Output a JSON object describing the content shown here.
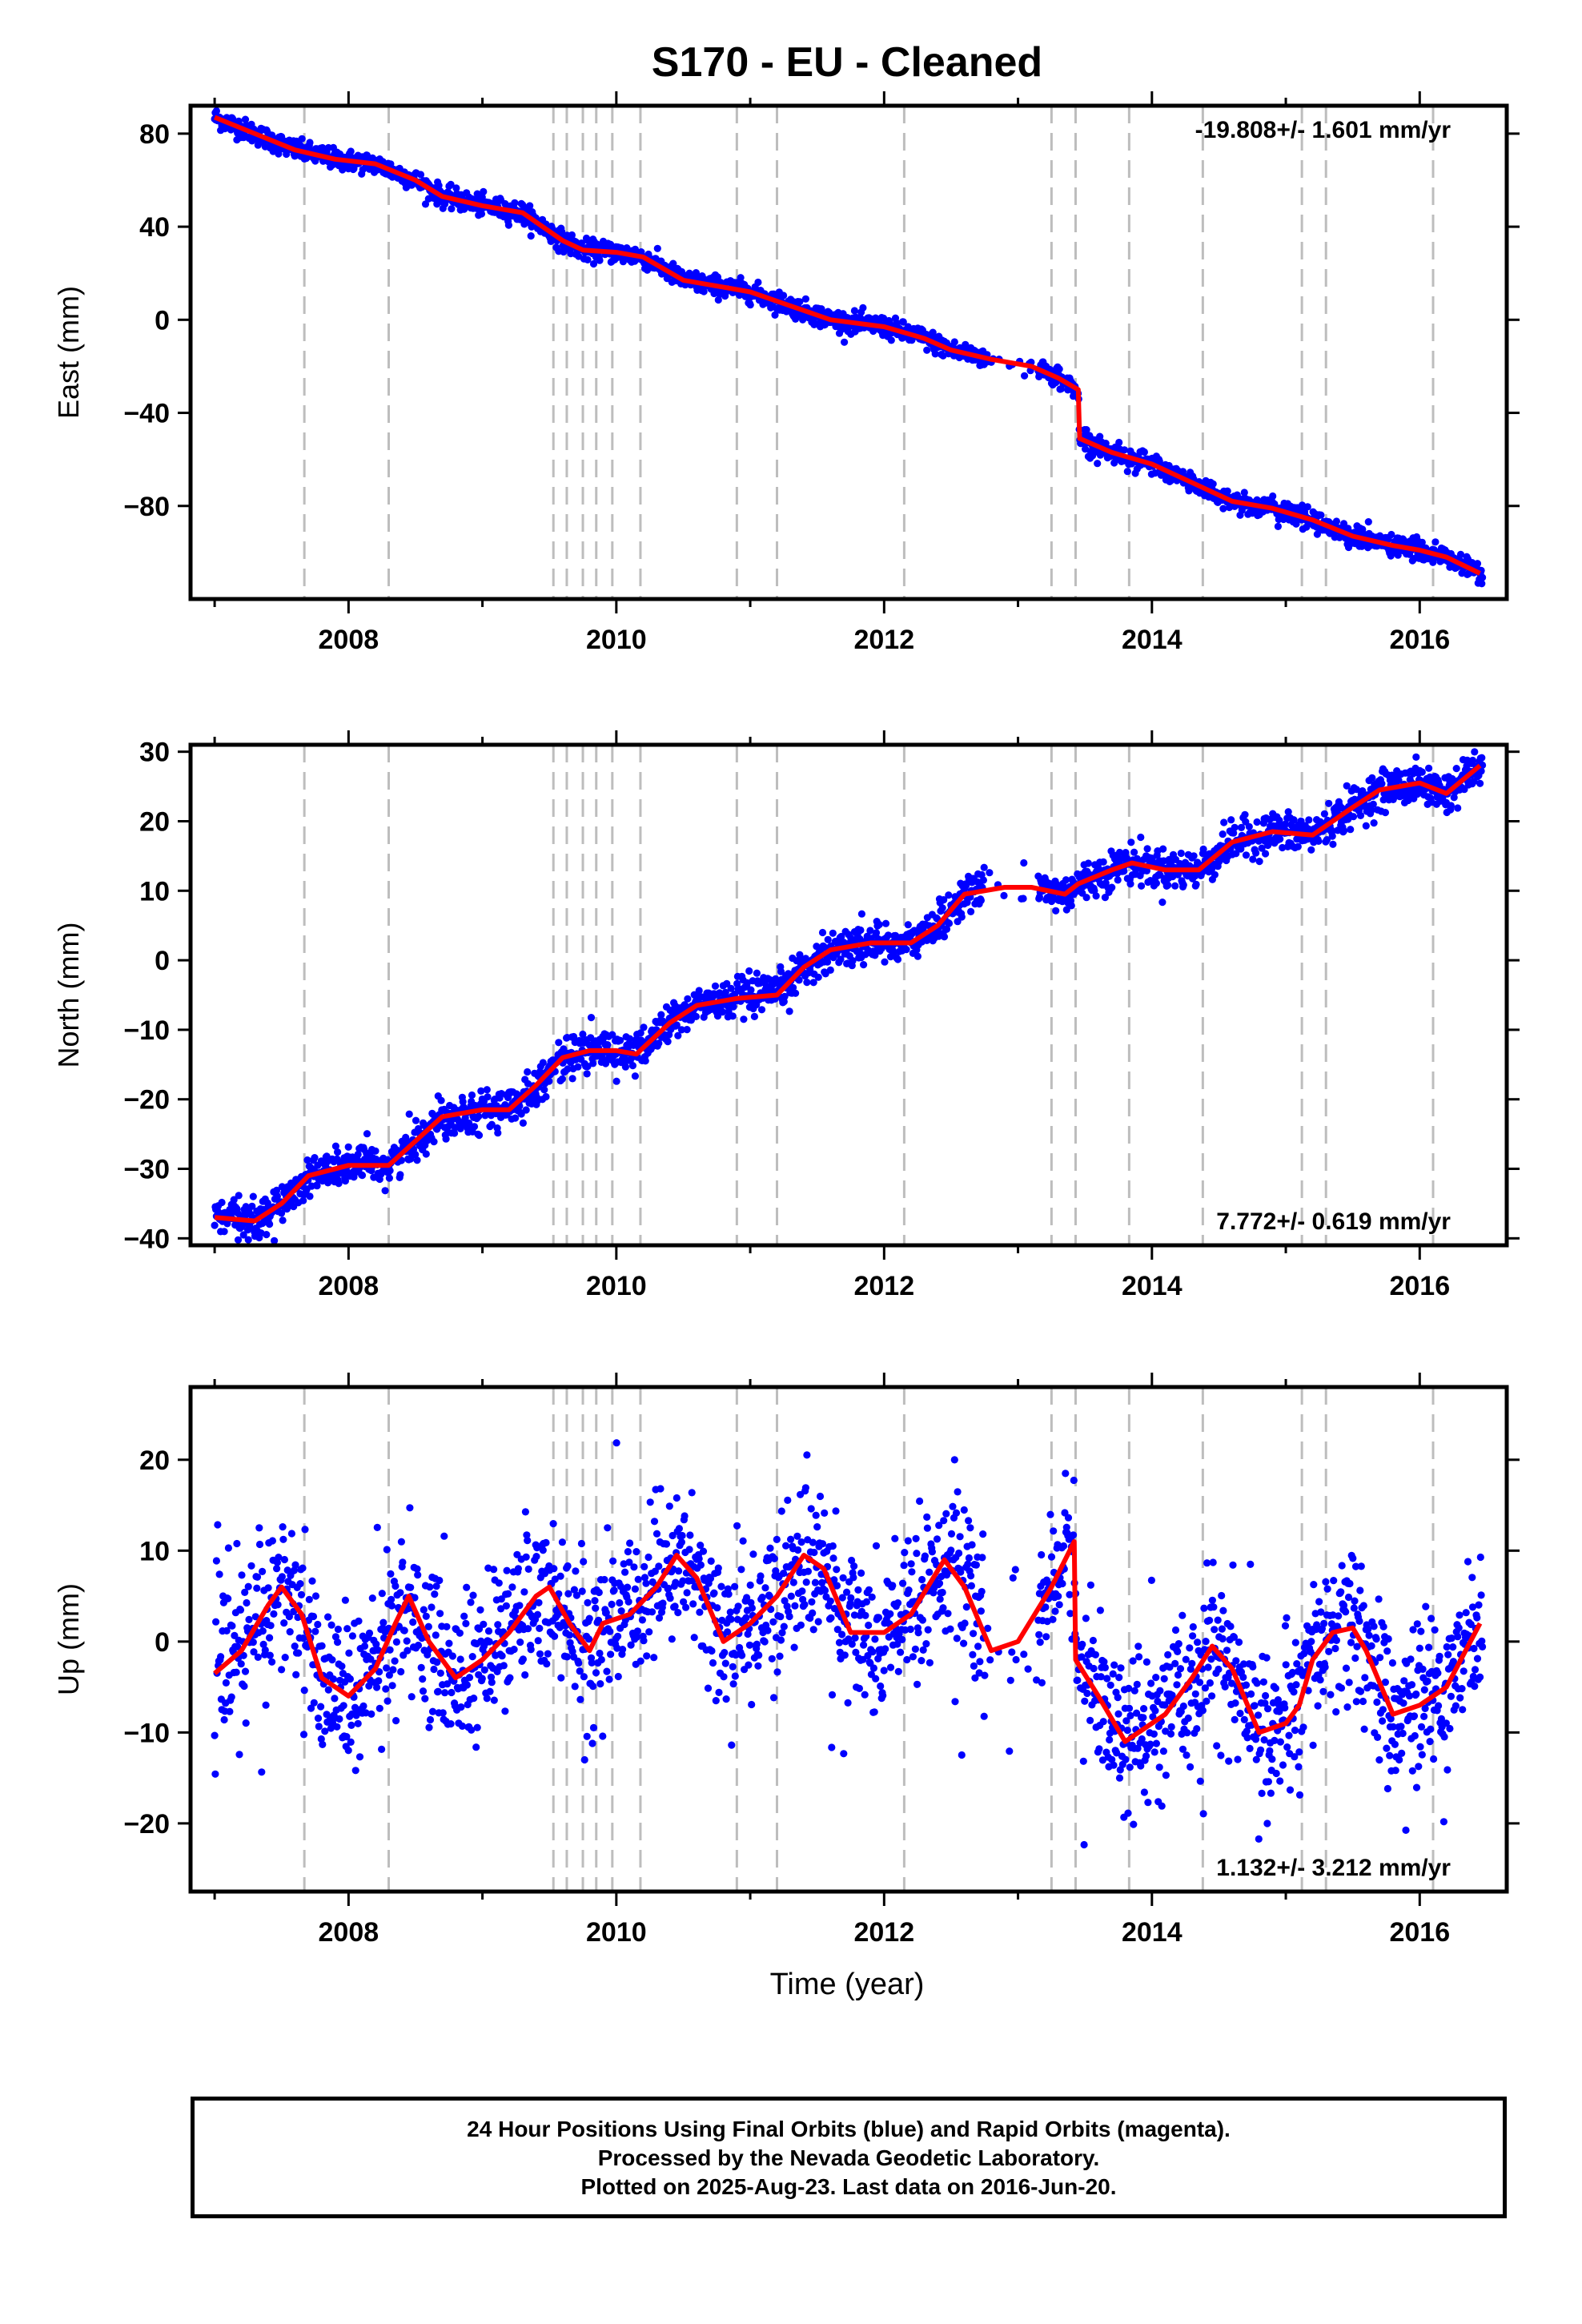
{
  "title": "S170  - EU - Cleaned",
  "x_axis_label": "Time (year)",
  "footer": {
    "line1": "24 Hour Positions Using Final Orbits (blue) and Rapid Orbits (magenta).",
    "line2": "Processed by the Nevada Geodetic Laboratory.",
    "line3": "Plotted on 2025-Aug-23. Last data on 2016-Jun-20."
  },
  "colors": {
    "points": "#0000ff",
    "model": "#ff0000",
    "steps": "#bdbdbd",
    "frame": "#000000"
  },
  "chart_data": [
    {
      "type": "scatter",
      "ylabel": "East (mm)",
      "rate_label": "-19.808+/- 1.601 mm/yr",
      "rate_position": "top-right",
      "xlim": [
        2006.82,
        2016.65
      ],
      "ylim": [
        -120,
        92
      ],
      "yticks": [
        80,
        40,
        0,
        -40,
        -80
      ],
      "xticks": [
        2008,
        2010,
        2012,
        2014,
        2016
      ],
      "model": [
        [
          2007.0,
          87
        ],
        [
          2007.3,
          80
        ],
        [
          2007.6,
          73
        ],
        [
          2007.9,
          69
        ],
        [
          2008.2,
          67
        ],
        [
          2008.5,
          60
        ],
        [
          2008.7,
          53
        ],
        [
          2009.0,
          49
        ],
        [
          2009.3,
          46
        ],
        [
          2009.6,
          34
        ],
        [
          2009.75,
          30
        ],
        [
          2010.0,
          29
        ],
        [
          2010.2,
          27
        ],
        [
          2010.5,
          17
        ],
        [
          2010.8,
          14
        ],
        [
          2011.0,
          12
        ],
        [
          2011.3,
          6
        ],
        [
          2011.6,
          0
        ],
        [
          2012.0,
          -3
        ],
        [
          2012.3,
          -8
        ],
        [
          2012.5,
          -13
        ],
        [
          2012.8,
          -17
        ],
        [
          2013.1,
          -20
        ],
        [
          2013.3,
          -25
        ],
        [
          2013.45,
          -30
        ],
        [
          2013.46,
          -51
        ],
        [
          2013.7,
          -57
        ],
        [
          2014.0,
          -62
        ],
        [
          2014.3,
          -70
        ],
        [
          2014.6,
          -78
        ],
        [
          2014.9,
          -81
        ],
        [
          2015.2,
          -86
        ],
        [
          2015.5,
          -93
        ],
        [
          2015.8,
          -97
        ],
        [
          2016.0,
          -99
        ],
        [
          2016.2,
          -102
        ],
        [
          2016.45,
          -109
        ]
      ],
      "noise": 2.2,
      "gap": [
        2012.75,
        2013.15
      ]
    },
    {
      "type": "scatter",
      "ylabel": "North (mm)",
      "rate_label": "7.772+/- 0.619 mm/yr",
      "rate_position": "bottom-right",
      "xlim": [
        2006.82,
        2016.65
      ],
      "ylim": [
        -41,
        31
      ],
      "yticks": [
        30,
        20,
        10,
        0,
        -10,
        -20,
        -30,
        -40
      ],
      "xticks": [
        2008,
        2010,
        2012,
        2014,
        2016
      ],
      "model": [
        [
          2007.0,
          -37
        ],
        [
          2007.3,
          -37.5
        ],
        [
          2007.5,
          -35
        ],
        [
          2007.7,
          -31
        ],
        [
          2008.0,
          -29.5
        ],
        [
          2008.3,
          -29.5
        ],
        [
          2008.5,
          -26
        ],
        [
          2008.7,
          -22.5
        ],
        [
          2009.0,
          -21.5
        ],
        [
          2009.2,
          -21.5
        ],
        [
          2009.4,
          -18
        ],
        [
          2009.6,
          -14
        ],
        [
          2009.8,
          -13
        ],
        [
          2010.0,
          -13
        ],
        [
          2010.15,
          -13.5
        ],
        [
          2010.4,
          -9
        ],
        [
          2010.6,
          -6.5
        ],
        [
          2010.9,
          -5.5
        ],
        [
          2011.2,
          -5
        ],
        [
          2011.4,
          -1
        ],
        [
          2011.6,
          1.5
        ],
        [
          2011.9,
          2.5
        ],
        [
          2012.2,
          2.5
        ],
        [
          2012.4,
          5
        ],
        [
          2012.6,
          9.5
        ],
        [
          2012.9,
          10.5
        ],
        [
          2013.1,
          10.5
        ],
        [
          2013.35,
          9.5
        ],
        [
          2013.45,
          11
        ],
        [
          2013.7,
          13
        ],
        [
          2013.85,
          14
        ],
        [
          2014.1,
          13
        ],
        [
          2014.35,
          13
        ],
        [
          2014.6,
          17
        ],
        [
          2014.9,
          18.5
        ],
        [
          2015.2,
          18
        ],
        [
          2015.5,
          22
        ],
        [
          2015.7,
          24.5
        ],
        [
          2016.0,
          25.5
        ],
        [
          2016.2,
          24
        ],
        [
          2016.45,
          28
        ]
      ],
      "noise": 1.4,
      "gap": [
        2012.75,
        2013.15
      ]
    },
    {
      "type": "scatter",
      "ylabel": "Up (mm)",
      "rate_label": "1.132+/- 3.212 mm/yr",
      "rate_position": "bottom-right",
      "xlim": [
        2006.82,
        2016.65
      ],
      "ylim": [
        -27.5,
        28
      ],
      "yticks": [
        20,
        10,
        0,
        -10,
        -20
      ],
      "xticks": [
        2008,
        2010,
        2012,
        2014,
        2016
      ],
      "model": [
        [
          2007.0,
          -3.5
        ],
        [
          2007.2,
          -1
        ],
        [
          2007.4,
          4
        ],
        [
          2007.5,
          6
        ],
        [
          2007.65,
          3
        ],
        [
          2007.8,
          -4
        ],
        [
          2008.0,
          -6
        ],
        [
          2008.2,
          -3
        ],
        [
          2008.35,
          2
        ],
        [
          2008.45,
          5
        ],
        [
          2008.6,
          0
        ],
        [
          2008.8,
          -4
        ],
        [
          2009.0,
          -2
        ],
        [
          2009.2,
          1
        ],
        [
          2009.4,
          5
        ],
        [
          2009.5,
          6
        ],
        [
          2009.65,
          2
        ],
        [
          2009.8,
          -1
        ],
        [
          2009.9,
          2
        ],
        [
          2010.1,
          3
        ],
        [
          2010.3,
          6
        ],
        [
          2010.45,
          9.5
        ],
        [
          2010.6,
          7
        ],
        [
          2010.8,
          0
        ],
        [
          2011.0,
          2
        ],
        [
          2011.2,
          5
        ],
        [
          2011.4,
          9.5
        ],
        [
          2011.55,
          8
        ],
        [
          2011.75,
          1
        ],
        [
          2012.0,
          1
        ],
        [
          2012.2,
          3
        ],
        [
          2012.45,
          9
        ],
        [
          2012.6,
          6
        ],
        [
          2012.8,
          -1
        ],
        [
          2013.0,
          0
        ],
        [
          2013.25,
          6
        ],
        [
          2013.42,
          11
        ],
        [
          2013.43,
          -2
        ],
        [
          2013.6,
          -6
        ],
        [
          2013.8,
          -11
        ],
        [
          2014.1,
          -8
        ],
        [
          2014.3,
          -4
        ],
        [
          2014.45,
          -0.5
        ],
        [
          2014.6,
          -3
        ],
        [
          2014.8,
          -10
        ],
        [
          2015.0,
          -9
        ],
        [
          2015.1,
          -7
        ],
        [
          2015.2,
          -2
        ],
        [
          2015.35,
          1
        ],
        [
          2015.5,
          1.5
        ],
        [
          2015.6,
          -1
        ],
        [
          2015.8,
          -8
        ],
        [
          2016.0,
          -7
        ],
        [
          2016.2,
          -5
        ],
        [
          2016.45,
          2
        ]
      ],
      "noise": 4.2,
      "gap": [
        2012.75,
        2013.15
      ]
    }
  ],
  "step_dates": [
    2007.67,
    2008.3,
    2009.53,
    2009.63,
    2009.75,
    2009.85,
    2009.97,
    2010.18,
    2010.9,
    2011.2,
    2012.15,
    2013.25,
    2013.43,
    2013.83,
    2014.38,
    2015.12,
    2015.3,
    2016.1
  ]
}
